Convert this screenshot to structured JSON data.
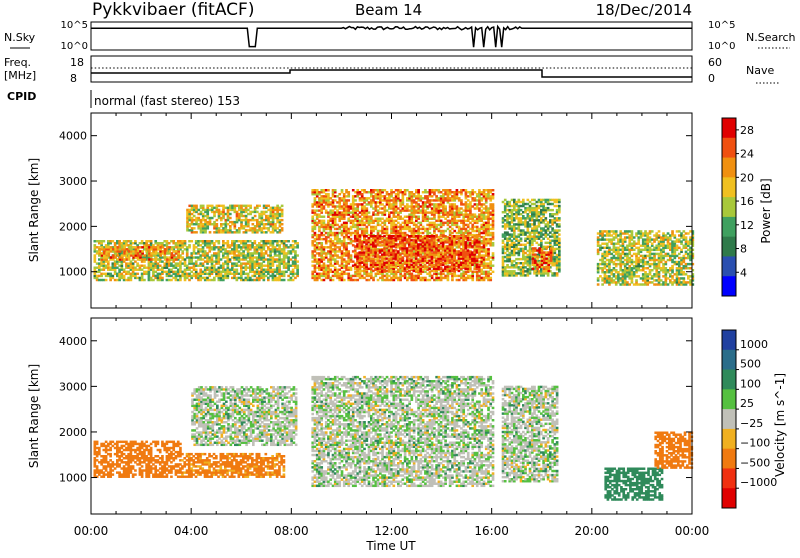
{
  "header": {
    "radar": "Pykkvibaer (fitACF)",
    "beam": "Beam 14",
    "date": "18/Dec/2014"
  },
  "panels": {
    "nsky": {
      "label": "N.Sky",
      "left_top": "10^5",
      "left_bottom": "10^0",
      "right_top": "10^5",
      "right_bottom": "10^0",
      "right_label": "N.Search"
    },
    "freq": {
      "label_top": "Freq.",
      "label_mid": "[MHz]",
      "left_top": "18",
      "left_bottom": "8",
      "right_top": "60",
      "right_bottom": "0",
      "right_label": "Nave"
    },
    "cpid": {
      "label": "CPID",
      "text": "normal (fast stereo) 153"
    }
  },
  "colors": {
    "power": [
      "#0000ff",
      "#2a4fb0",
      "#2f7a4a",
      "#3fa05f",
      "#a8c83a",
      "#f0c020",
      "#f09010",
      "#f05010",
      "#e00000"
    ],
    "velocity": [
      "#2040a0",
      "#2a6d8a",
      "#2f8a5a",
      "#55c040",
      "#c0c0b8",
      "#f0b020",
      "#f07a10",
      "#f03010",
      "#e00000"
    ],
    "trace": "#000000",
    "grid": "#000000"
  },
  "chart_data": [
    {
      "type": "heatmap",
      "title": "Power",
      "xlabel": "Time UT",
      "ylabel": "Slant Range [km]",
      "xlim": [
        "00:00",
        "24:00"
      ],
      "ylim": [
        200,
        4500
      ],
      "x_ticks": [
        "00:00",
        "04:00",
        "08:00",
        "12:00",
        "16:00",
        "20:00",
        "00:00"
      ],
      "y_ticks": [
        1000,
        2000,
        3000,
        4000
      ],
      "colorbar": {
        "label": "Power [dB]",
        "ticks": [
          4,
          8,
          12,
          16,
          20,
          24,
          28
        ],
        "range": [
          0,
          30
        ]
      },
      "regions": [
        {
          "t0": 0.1,
          "t1": 8.2,
          "r0": 800,
          "r1": 1700,
          "level": 16
        },
        {
          "t0": 0.3,
          "t1": 3.5,
          "r0": 1250,
          "r1": 1550,
          "level": 22
        },
        {
          "t0": 3.8,
          "t1": 7.6,
          "r0": 1850,
          "r1": 2450,
          "level": 18
        },
        {
          "t0": 8.8,
          "t1": 16.0,
          "r0": 800,
          "r1": 2800,
          "level": 22
        },
        {
          "t0": 10.5,
          "t1": 15.5,
          "r0": 1000,
          "r1": 1800,
          "level": 26
        },
        {
          "t0": 16.4,
          "t1": 18.7,
          "r0": 900,
          "r1": 2600,
          "level": 14
        },
        {
          "t0": 17.6,
          "t1": 18.4,
          "r0": 1000,
          "r1": 1500,
          "level": 25
        },
        {
          "t0": 20.2,
          "t1": 24.0,
          "r0": 700,
          "r1": 1900,
          "level": 16
        }
      ]
    },
    {
      "type": "heatmap",
      "title": "Velocity",
      "xlabel": "Time UT",
      "ylabel": "Slant Range [km]",
      "xlim": [
        "00:00",
        "24:00"
      ],
      "ylim": [
        200,
        4500
      ],
      "x_ticks": [
        "00:00",
        "04:00",
        "08:00",
        "12:00",
        "16:00",
        "20:00",
        "00:00"
      ],
      "y_ticks": [
        1000,
        2000,
        3000,
        4000
      ],
      "colorbar": {
        "label": "Velocity [m s^-1]",
        "ticks": [
          "1000",
          "500",
          "100",
          "25",
          "−25",
          "−100",
          "−500",
          "−1000"
        ]
      },
      "regions": [
        {
          "t0": 0.1,
          "t1": 3.6,
          "r0": 1000,
          "r1": 1800,
          "level": -150
        },
        {
          "t0": 3.6,
          "t1": 7.7,
          "r0": 1000,
          "r1": 1500,
          "level": -120
        },
        {
          "t0": 4.0,
          "t1": 8.2,
          "r0": 1700,
          "r1": 3000,
          "level": 0
        },
        {
          "t0": 8.8,
          "t1": 16.0,
          "r0": 800,
          "r1": 3200,
          "level": 0
        },
        {
          "t0": 16.4,
          "t1": 18.6,
          "r0": 900,
          "r1": 3000,
          "level": 0
        },
        {
          "t0": 20.5,
          "t1": 22.8,
          "r0": 500,
          "r1": 1200,
          "level": 60
        },
        {
          "t0": 22.5,
          "t1": 24.0,
          "r0": 1200,
          "r1": 2000,
          "level": -200
        }
      ]
    }
  ]
}
